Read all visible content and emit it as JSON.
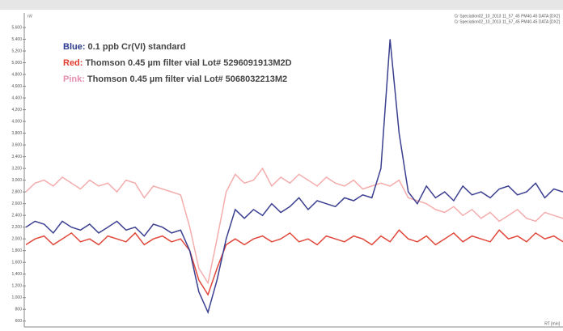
{
  "chart_data": {
    "type": "line",
    "y_label": "nV",
    "x_label": "RT [min]",
    "header_lines": [
      {
        "text": "Cr Speciation02_10_2013 11_57_45 PM40-45 DATA [DX2]",
        "color": "#e0473a"
      },
      {
        "text": "Cr Speciation02_10_2013 11_57_45 PM40-45 DATA [DX2]",
        "color": "#f4a7a7"
      }
    ],
    "ylim": [
      500,
      5800
    ],
    "yticks": [
      600,
      800,
      {
        "value": 1000,
        "label": "1,000"
      },
      {
        "value": 1200,
        "label": "1,200"
      },
      {
        "value": 1400,
        "label": "1,400"
      },
      {
        "value": 1600,
        "label": "1,600"
      },
      {
        "value": 1800,
        "label": "1,800"
      },
      {
        "value": 2000,
        "label": "2,000"
      },
      {
        "value": 2200,
        "label": "2,200"
      },
      {
        "value": 2400,
        "label": "2,400"
      },
      {
        "value": 2600,
        "label": "2,600"
      },
      {
        "value": 2800,
        "label": "2,800"
      },
      {
        "value": 3000,
        "label": "3,000"
      },
      {
        "value": 3200,
        "label": "3,200"
      },
      {
        "value": 3400,
        "label": "3,400"
      },
      {
        "value": 3600,
        "label": "3,600"
      },
      {
        "value": 3800,
        "label": "3,800"
      },
      {
        "value": 4000,
        "label": "4,000"
      },
      {
        "value": 4200,
        "label": "4,200"
      },
      {
        "value": 4400,
        "label": "4,400"
      },
      {
        "value": 4600,
        "label": "4,600"
      },
      {
        "value": 4800,
        "label": "4,800"
      },
      {
        "value": 5000,
        "label": "5,000"
      },
      {
        "value": 5200,
        "label": "5,200"
      },
      {
        "value": 5400,
        "label": "5,400"
      },
      {
        "value": 5600,
        "label": "5,600"
      }
    ],
    "series": [
      {
        "label": "Pink:",
        "name": "Thomson 0.45 µm filter vial Lot# 5068032213M2",
        "color": "#f4adad",
        "label_color": "#e48fb0",
        "values": [
          2800,
          2950,
          3000,
          2900,
          3050,
          2950,
          2850,
          3000,
          2900,
          2950,
          2800,
          3000,
          2950,
          2700,
          2900,
          2850,
          2800,
          2750,
          2200,
          1500,
          1250,
          2000,
          2800,
          3100,
          2950,
          3000,
          3200,
          2900,
          3050,
          2950,
          3100,
          3000,
          2900,
          3050,
          2950,
          2900,
          3000,
          2850,
          2900,
          2950,
          2900,
          3000,
          2700,
          2650,
          2600,
          2500,
          2450,
          2550,
          2400,
          2500,
          2350,
          2450,
          2300,
          2400,
          2500,
          2350,
          2300,
          2450,
          2400,
          2350
        ]
      },
      {
        "label": "Red:",
        "name": "Thomson 0.45 µm filter vial Lot# 5296091913M2D",
        "color": "#e0473a",
        "label_color": "#e03a2e",
        "values": [
          1900,
          2000,
          2050,
          1900,
          2000,
          2100,
          1950,
          2000,
          1900,
          2050,
          2000,
          1950,
          2100,
          1900,
          2000,
          2050,
          1950,
          2000,
          1800,
          1300,
          1050,
          1500,
          1900,
          2000,
          1900,
          2000,
          2050,
          1950,
          2000,
          2100,
          1950,
          2000,
          1900,
          2050,
          2000,
          1950,
          2050,
          2000,
          1900,
          2050,
          1950,
          2150,
          2000,
          1950,
          2050,
          1900,
          2000,
          2100,
          1950,
          2050,
          2000,
          1950,
          2150,
          2000,
          2050,
          1950,
          2100,
          2000,
          2050,
          1950
        ]
      },
      {
        "label": "Blue:",
        "name": "0.1 ppb Cr(VI) standard",
        "color": "#3b3f8f",
        "label_color": "#2a3a8c",
        "values": [
          2200,
          2300,
          2250,
          2100,
          2300,
          2200,
          2150,
          2250,
          2100,
          2200,
          2300,
          2150,
          2200,
          2050,
          2250,
          2200,
          2100,
          2150,
          1800,
          1100,
          750,
          1300,
          2000,
          2500,
          2350,
          2500,
          2400,
          2600,
          2450,
          2550,
          2700,
          2500,
          2650,
          2600,
          2550,
          2700,
          2650,
          2750,
          2700,
          3200,
          5400,
          3800,
          2800,
          2600,
          2900,
          2700,
          2800,
          2650,
          2900,
          2750,
          2800,
          2700,
          2850,
          2900,
          2750,
          2800,
          2950,
          2700,
          2850,
          2800
        ]
      }
    ]
  }
}
